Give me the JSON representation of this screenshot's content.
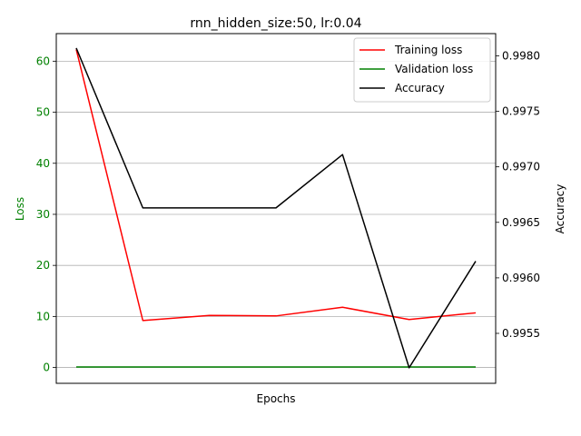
{
  "chart_data": {
    "type": "line",
    "title": "rnn_hidden_size:50, lr:0.04",
    "xlabel": "Epochs",
    "ylabel_left": "Loss",
    "ylabel_right": "Accuracy",
    "x": [
      1,
      2,
      3,
      4,
      5,
      6,
      7
    ],
    "xlim": [
      0.7,
      7.3
    ],
    "ylim_left": [
      -3.1,
      65.4
    ],
    "ylim_right": [
      0.99505,
      0.9982
    ],
    "yticks_left": [
      0,
      10,
      20,
      30,
      40,
      50,
      60
    ],
    "yticks_right": [
      "0.9955",
      "0.9960",
      "0.9965",
      "0.9970",
      "0.9975",
      "0.9980"
    ],
    "ytick_values_right": [
      0.9955,
      0.996,
      0.9965,
      0.997,
      0.9975,
      0.998
    ],
    "grid": "horizontal",
    "legend_position": "top-right",
    "series": [
      {
        "name": "Training loss",
        "axis": "left",
        "color": "#ff0000",
        "values": [
          62.3,
          9.2,
          10.2,
          10.1,
          11.8,
          9.4,
          10.7
        ]
      },
      {
        "name": "Validation loss",
        "axis": "left",
        "color": "#008000",
        "values": [
          0.1,
          0.1,
          0.1,
          0.1,
          0.1,
          0.1,
          0.1
        ]
      },
      {
        "name": "Accuracy",
        "axis": "right",
        "color": "#000000",
        "values": [
          0.99807,
          0.99663,
          0.99663,
          0.99663,
          0.99711,
          0.99519,
          0.99615
        ]
      }
    ],
    "colors": {
      "left_axis_label": "#008000",
      "grid": "#b0b0b0",
      "axis": "#000000"
    }
  }
}
